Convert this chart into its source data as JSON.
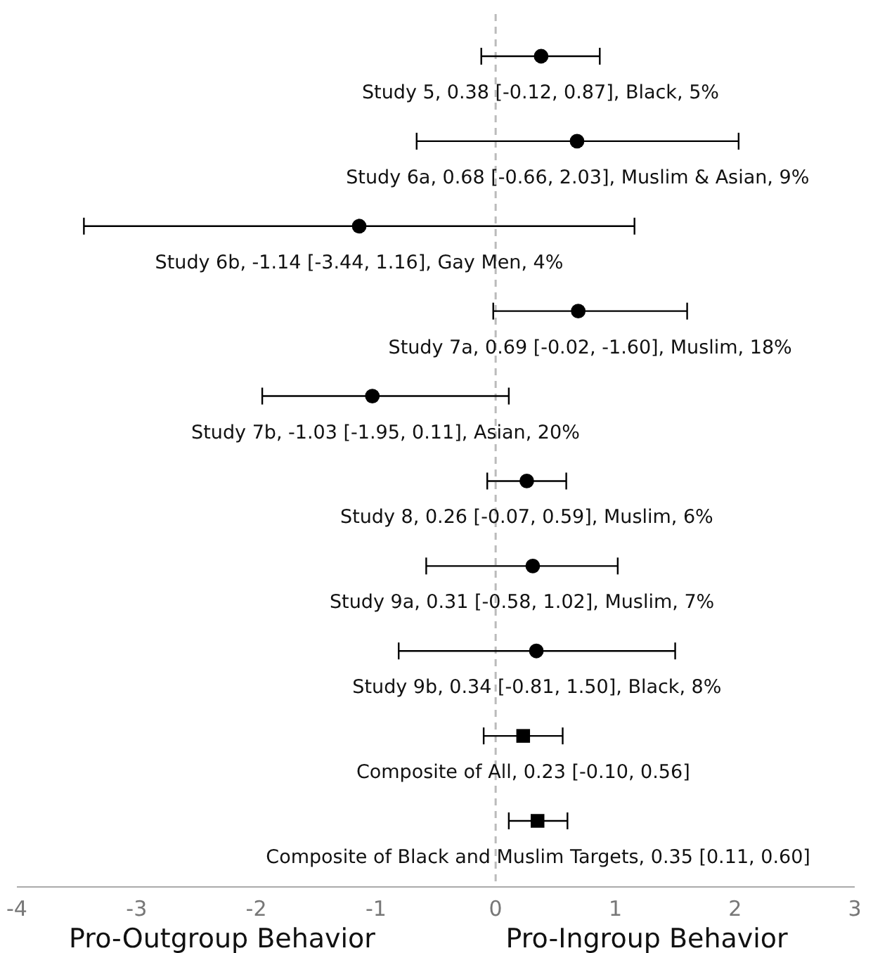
{
  "chart_data": {
    "type": "scatter",
    "orientation": "horizontal",
    "categories": [
      "Study 5, 0.38 [-0.12, 0.87], Black, 5%",
      "Study 6a, 0.68 [-0.66, 2.03], Muslim & Asian, 9%",
      "Study 6b, -1.14 [-3.44, 1.16], Gay Men, 4%",
      "Study 7a, 0.69 [-0.02, -1.60], Muslim, 18%",
      "Study 7b, -1.03 [-1.95, 0.11], Asian, 20%",
      "Study 8, 0.26 [-0.07, 0.59], Muslim, 6%",
      "Study 9a, 0.31 [-0.58, 1.02], Muslim, 7%",
      "Study 9b, 0.34 [-0.81, 1.50], Black, 8%",
      "Composite of All, 0.23 [-0.10, 0.56]",
      "Composite of Black and Muslim Targets, 0.35 [0.11, 0.60]"
    ],
    "series": [
      {
        "color": "#000000",
        "marker": "circle",
        "values": [
          0.38,
          0.68,
          -1.14,
          0.69,
          -1.03,
          0.26,
          0.31,
          0.34,
          null,
          null
        ],
        "errors": [
          [
            -0.12,
            0.87
          ],
          [
            -0.66,
            2.03
          ],
          [
            -3.44,
            1.16
          ],
          [
            -0.02,
            1.6
          ],
          [
            -1.95,
            0.11
          ],
          [
            -0.07,
            0.59
          ],
          [
            -0.58,
            1.02
          ],
          [
            -0.81,
            1.5
          ],
          null,
          null
        ]
      },
      {
        "color": "#000000",
        "marker": "square",
        "values": [
          null,
          null,
          null,
          null,
          null,
          null,
          null,
          null,
          0.23,
          0.35
        ],
        "errors": [
          null,
          null,
          null,
          null,
          null,
          null,
          null,
          null,
          [
            -0.1,
            0.56
          ],
          [
            0.11,
            0.6
          ]
        ]
      }
    ],
    "xlim": [
      -4,
      3
    ],
    "xticks": [
      -4,
      -3,
      -2,
      -1,
      0,
      1,
      2,
      3
    ],
    "tick_labels": "x",
    "grid": false,
    "ref_lines": [
      {
        "axis": "x",
        "value": 0,
        "color": "#bbbbbb",
        "line_style": "dashed"
      }
    ],
    "annotations": [
      "Pro-Outgroup Behavior",
      "Pro-Ingroup Behavior"
    ]
  }
}
